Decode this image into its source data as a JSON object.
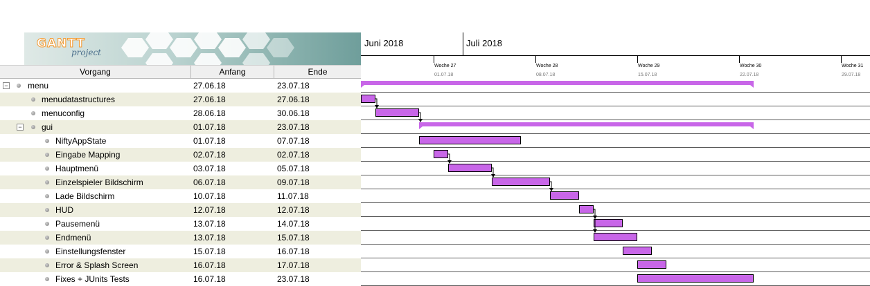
{
  "logo": {
    "title": "GANTT",
    "subtitle": "project"
  },
  "table": {
    "headers": {
      "task": "Vorgang",
      "start": "Anfang",
      "end": "Ende"
    },
    "rows": [
      {
        "name": "menu",
        "start": "27.06.18",
        "end": "23.07.18",
        "level": 0,
        "toggle": "−",
        "alt": false
      },
      {
        "name": "menudatastructures",
        "start": "27.06.18",
        "end": "27.06.18",
        "level": 1,
        "toggle": "",
        "alt": true
      },
      {
        "name": "menuconfig",
        "start": "28.06.18",
        "end": "30.06.18",
        "level": 1,
        "toggle": "",
        "alt": false
      },
      {
        "name": "gui",
        "start": "01.07.18",
        "end": "23.07.18",
        "level": 1,
        "toggle": "−",
        "alt": true
      },
      {
        "name": "NiftyAppState",
        "start": "01.07.18",
        "end": "07.07.18",
        "level": 2,
        "toggle": "",
        "alt": false
      },
      {
        "name": "Eingabe Mapping",
        "start": "02.07.18",
        "end": "02.07.18",
        "level": 2,
        "toggle": "",
        "alt": true
      },
      {
        "name": "Hauptmenü",
        "start": "03.07.18",
        "end": "05.07.18",
        "level": 2,
        "toggle": "",
        "alt": false
      },
      {
        "name": "Einzelspieler Bildschirm",
        "start": "06.07.18",
        "end": "09.07.18",
        "level": 2,
        "toggle": "",
        "alt": true
      },
      {
        "name": "Lade Bildschirm",
        "start": "10.07.18",
        "end": "11.07.18",
        "level": 2,
        "toggle": "",
        "alt": false
      },
      {
        "name": "HUD",
        "start": "12.07.18",
        "end": "12.07.18",
        "level": 2,
        "toggle": "",
        "alt": true
      },
      {
        "name": "Pausemenü",
        "start": "13.07.18",
        "end": "14.07.18",
        "level": 2,
        "toggle": "",
        "alt": false
      },
      {
        "name": "Endmenü",
        "start": "13.07.18",
        "end": "15.07.18",
        "level": 2,
        "toggle": "",
        "alt": true
      },
      {
        "name": "Einstellungsfenster",
        "start": "15.07.18",
        "end": "16.07.18",
        "level": 2,
        "toggle": "",
        "alt": false
      },
      {
        "name": "Error & Splash Screen",
        "start": "16.07.18",
        "end": "17.07.18",
        "level": 2,
        "toggle": "",
        "alt": true
      },
      {
        "name": "Fixes + JUnits Tests",
        "start": "16.07.18",
        "end": "23.07.18",
        "level": 2,
        "toggle": "",
        "alt": false
      }
    ]
  },
  "timeline": {
    "months": [
      {
        "label": "Juni 2018",
        "date": "2018-06-27"
      },
      {
        "label": "Juli 2018",
        "date": "2018-07-01"
      }
    ],
    "weeks": [
      {
        "label": "Woche 27",
        "date_label": "01.07.18",
        "date": "2018-07-01"
      },
      {
        "label": "Woche 28",
        "date_label": "08.07.18",
        "date": "2018-07-08"
      },
      {
        "label": "Woche 29",
        "date_label": "15.07.18",
        "date": "2018-07-15"
      },
      {
        "label": "Woche 30",
        "date_label": "22.07.18",
        "date": "2018-07-22"
      },
      {
        "label": "Woche 31",
        "date_label": "29.07.18",
        "date": "2018-07-29"
      }
    ]
  },
  "tasks": [
    {
      "row": 0,
      "type": "summary",
      "start": "2018-06-27",
      "end": "2018-07-23"
    },
    {
      "row": 1,
      "type": "task",
      "start": "2018-06-27",
      "end": "2018-06-27"
    },
    {
      "row": 2,
      "type": "task",
      "start": "2018-06-28",
      "end": "2018-06-30"
    },
    {
      "row": 3,
      "type": "summary",
      "start": "2018-07-01",
      "end": "2018-07-23"
    },
    {
      "row": 4,
      "type": "task",
      "start": "2018-07-01",
      "end": "2018-07-07"
    },
    {
      "row": 5,
      "type": "task",
      "start": "2018-07-02",
      "end": "2018-07-02"
    },
    {
      "row": 6,
      "type": "task",
      "start": "2018-07-03",
      "end": "2018-07-05"
    },
    {
      "row": 7,
      "type": "task",
      "start": "2018-07-06",
      "end": "2018-07-09"
    },
    {
      "row": 8,
      "type": "task",
      "start": "2018-07-10",
      "end": "2018-07-11"
    },
    {
      "row": 9,
      "type": "task",
      "start": "2018-07-12",
      "end": "2018-07-12"
    },
    {
      "row": 10,
      "type": "task",
      "start": "2018-07-13",
      "end": "2018-07-14"
    },
    {
      "row": 11,
      "type": "task",
      "start": "2018-07-13",
      "end": "2018-07-15"
    },
    {
      "row": 12,
      "type": "task",
      "start": "2018-07-15",
      "end": "2018-07-16"
    },
    {
      "row": 13,
      "type": "task",
      "start": "2018-07-16",
      "end": "2018-07-17"
    },
    {
      "row": 14,
      "type": "task",
      "start": "2018-07-16",
      "end": "2018-07-23"
    }
  ],
  "dependencies": [
    {
      "from": 1,
      "to": 2
    },
    {
      "from": 2,
      "to": 3
    },
    {
      "from": 5,
      "to": 6
    },
    {
      "from": 6,
      "to": 7
    },
    {
      "from": 7,
      "to": 8
    },
    {
      "from": 9,
      "to": 10
    },
    {
      "from": 9,
      "to": 11
    }
  ],
  "colors": {
    "bar": "#c866e8",
    "logo_bg": "#6f9e9b",
    "alt_row": "#eeeedf",
    "logo_orange": "#f29b34"
  }
}
